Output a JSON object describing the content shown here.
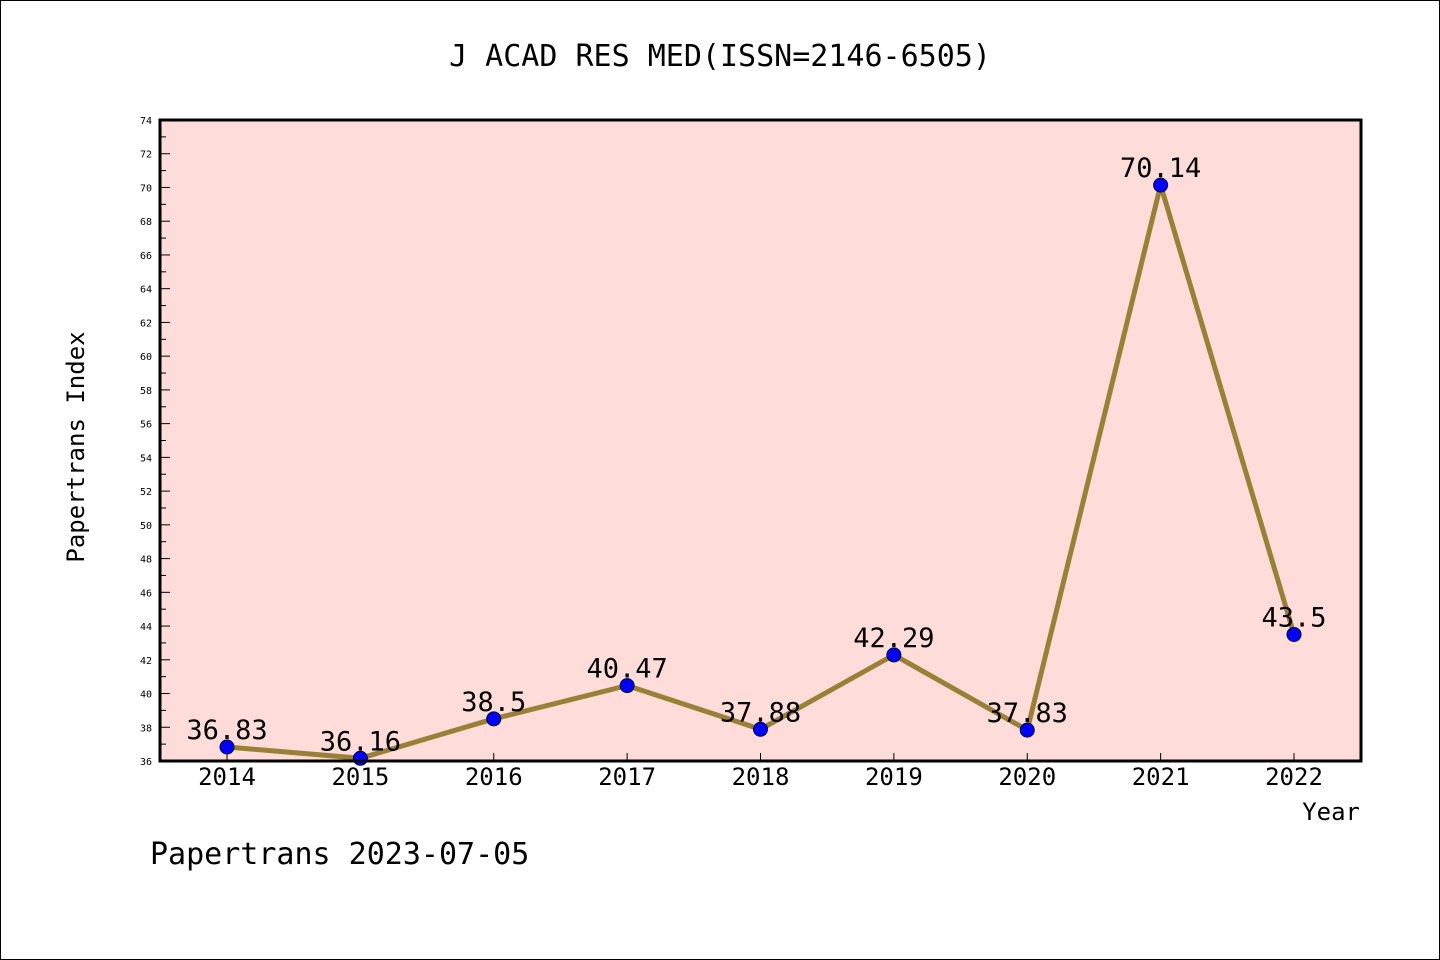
{
  "chart_data": {
    "type": "line",
    "title": "J ACAD RES MED(ISSN=2146-6505)",
    "xlabel": "Year",
    "ylabel": "Papertrans Index",
    "categories": [
      "2014",
      "2015",
      "2016",
      "2017",
      "2018",
      "2019",
      "2020",
      "2021",
      "2022"
    ],
    "series": [
      {
        "values": [
          36.83,
          36.16,
          38.5,
          40.47,
          37.88,
          42.29,
          37.83,
          70.14,
          43.5
        ],
        "data_labels": [
          "36.83",
          "36.16",
          "38.5",
          "40.47",
          "37.88",
          "42.29",
          "37.83",
          "70.14",
          "43.5"
        ]
      }
    ],
    "ylim": [
      36,
      74
    ],
    "yticks": [
      "36",
      "38",
      "40",
      "42",
      "44",
      "46",
      "48",
      "50",
      "52",
      "54",
      "56",
      "58",
      "60",
      "62",
      "64",
      "66",
      "68",
      "70",
      "72",
      "74"
    ],
    "grid": false,
    "colors": {
      "plot_background": "#fddcda",
      "line": "#9a8037",
      "marker": "#0000ff"
    }
  },
  "footer": "Papertrans 2023-07-05"
}
